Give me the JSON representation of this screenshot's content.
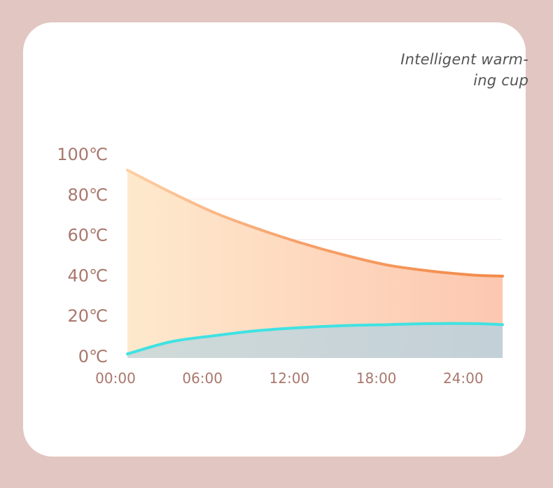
{
  "title_lines": [
    "Intelligent warm-",
    "ing cup"
  ],
  "colors": {
    "page_bg": "#e2c6c1",
    "card_bg": "#ffffff",
    "hot_line_start": "#fdd0a4",
    "hot_line_end": "#f28b48",
    "cool_line": "#3fe2e2",
    "tick_text": "#a9776c"
  },
  "chart_data": {
    "type": "area",
    "title": "Intelligent warm-ing cup",
    "x_ticks": [
      "00:00",
      "06:00",
      "12:00",
      "18:00",
      "24:00"
    ],
    "y_ticks": [
      "0℃",
      "20℃",
      "40℃",
      "60℃",
      "80℃",
      "100℃"
    ],
    "xlim": [
      0,
      26
    ],
    "ylim": [
      0,
      100
    ],
    "grid": true,
    "series": [
      {
        "key": "upper",
        "x": [
          0,
          3,
          6,
          9,
          12,
          15,
          18,
          21,
          24,
          26
        ],
        "values": [
          93,
          82,
          72,
          64,
          57,
          51,
          46,
          43,
          41,
          40.5
        ]
      },
      {
        "key": "lower",
        "x": [
          0,
          3,
          6,
          9,
          12,
          15,
          18,
          21,
          24,
          26
        ],
        "values": [
          2,
          8,
          11,
          13.5,
          15,
          16,
          16.5,
          17,
          17,
          16.5
        ]
      }
    ]
  }
}
